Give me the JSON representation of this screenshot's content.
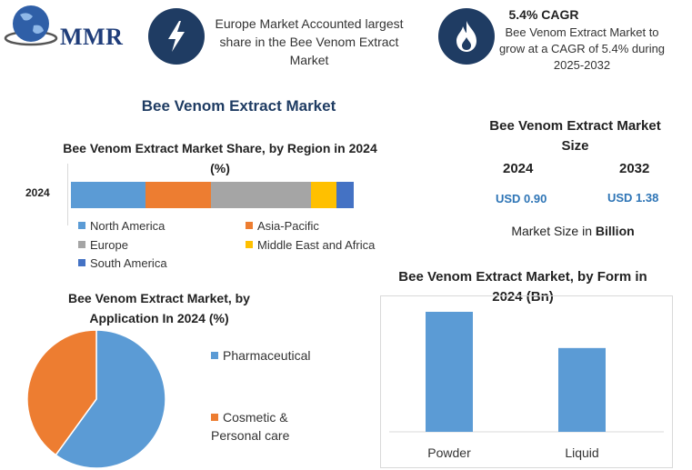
{
  "header": {
    "logo_text": "MMR",
    "icon1": "lightning-icon",
    "highlight1": "Europe Market Accounted largest share in the Bee Venom Extract Market",
    "icon2": "flame-icon",
    "cagr_title": "5.4% CAGR",
    "cagr_text": "Bee Venom Extract Market to grow at a CAGR of 5.4% during 2025-2032"
  },
  "main_title": "Bee Venom Extract Market",
  "market_size": {
    "title": "Bee Venom Extract Market Size",
    "years": [
      "2024",
      "2032"
    ],
    "values": [
      "USD 0.90",
      "USD 1.38"
    ],
    "note_prefix": "Market Size in ",
    "note_unit": "Billion"
  },
  "colors": {
    "north_america": "#5b9bd5",
    "asia_pacific": "#ed7d31",
    "europe": "#a5a5a5",
    "mea": "#ffc000",
    "south_america": "#4472c4",
    "badge": "#1f3c63"
  },
  "chart_data": [
    {
      "type": "bar",
      "orientation": "horizontal-stacked",
      "title": "Bee Venom Extract Market Share, by Region in 2024 (%)",
      "categories": [
        "2024"
      ],
      "series": [
        {
          "name": "North America",
          "values": [
            26.5
          ],
          "color": "#5b9bd5"
        },
        {
          "name": "Asia-Pacific",
          "values": [
            23
          ],
          "color": "#ed7d31"
        },
        {
          "name": "Europe",
          "values": [
            35.5
          ],
          "color": "#a5a5a5"
        },
        {
          "name": "Middle East and Africa",
          "values": [
            9
          ],
          "color": "#ffc000"
        },
        {
          "name": "South America",
          "values": [
            6
          ],
          "color": "#4472c4"
        }
      ],
      "legend": "bottom"
    },
    {
      "type": "pie",
      "title": "Bee Venom Extract Market, by Application In 2024 (%)",
      "labels": [
        "Pharmaceutical",
        "Cosmetic & Personal care"
      ],
      "values": [
        60,
        40
      ],
      "colors": [
        "#5b9bd5",
        "#ed7d31"
      ],
      "legend": "right"
    },
    {
      "type": "bar",
      "title": "Bee Venom Extract Market, by Form in 2024 (Bn)",
      "categories": [
        "Powder",
        "Liquid"
      ],
      "values": [
        0.53,
        0.37
      ],
      "ylim": [
        0,
        0.55
      ],
      "color": "#5b9bd5"
    }
  ]
}
